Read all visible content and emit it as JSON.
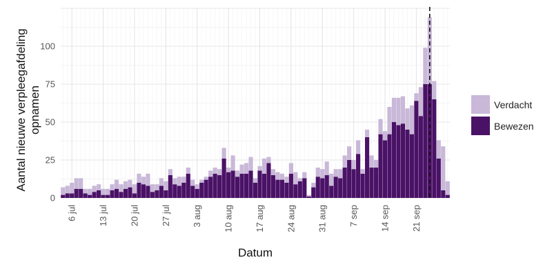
{
  "chart_data": {
    "type": "bar",
    "stacked": true,
    "xlabel": "Datum",
    "ylabel_lines": [
      "Aantal nieuwe verpleegafdeling",
      "opnamen"
    ],
    "ylim": [
      0,
      125
    ],
    "yticks": [
      0,
      25,
      50,
      75,
      100
    ],
    "grid": true,
    "legend_position": "right",
    "start_date": "2020-07-04",
    "end_date": "2020-09-28",
    "x_ticks": [
      {
        "label": "6 jul",
        "day": 2
      },
      {
        "label": "13 jul",
        "day": 9
      },
      {
        "label": "20 jul",
        "day": 16
      },
      {
        "label": "27 jul",
        "day": 23
      },
      {
        "label": "3 aug",
        "day": 30
      },
      {
        "label": "10 aug",
        "day": 37
      },
      {
        "label": "17 aug",
        "day": 44
      },
      {
        "label": "24 aug",
        "day": 51
      },
      {
        "label": "31 aug",
        "day": 58
      },
      {
        "label": "7 sep",
        "day": 65
      },
      {
        "label": "14 sep",
        "day": 72
      },
      {
        "label": "21 sep",
        "day": 79
      }
    ],
    "vline_day": 82.5,
    "series": [
      {
        "name": "Bewezen",
        "color": "#4a1266",
        "values": [
          2,
          3,
          3,
          6,
          6,
          3,
          2,
          4,
          5,
          2,
          2,
          5,
          6,
          4,
          6,
          7,
          3,
          10,
          9,
          8,
          4,
          5,
          8,
          5,
          15,
          9,
          8,
          10,
          16,
          8,
          6,
          10,
          12,
          14,
          16,
          15,
          26,
          17,
          18,
          14,
          16,
          16,
          18,
          10,
          18,
          16,
          23,
          15,
          12,
          12,
          10,
          16,
          9,
          11,
          13,
          1,
          7,
          14,
          13,
          15,
          8,
          14,
          13,
          20,
          25,
          19,
          29,
          16,
          40,
          20,
          20,
          42,
          38,
          42,
          50,
          48,
          49,
          45,
          42,
          64,
          54,
          75,
          75,
          65,
          26,
          5,
          2
        ]
      },
      {
        "name": "Verdacht",
        "color": "#c9b8d8",
        "values": [
          5,
          5,
          7,
          7,
          7,
          3,
          4,
          4,
          4,
          4,
          4,
          4,
          6,
          5,
          5,
          5,
          6,
          6,
          5,
          8,
          5,
          4,
          5,
          6,
          4,
          4,
          6,
          4,
          4,
          4,
          3,
          2,
          2,
          4,
          4,
          4,
          7,
          3,
          10,
          4,
          6,
          7,
          9,
          3,
          3,
          10,
          4,
          4,
          5,
          4,
          4,
          7,
          8,
          2,
          4,
          1,
          3,
          6,
          6,
          9,
          8,
          5,
          6,
          8,
          9,
          6,
          9,
          3,
          5,
          8,
          5,
          10,
          6,
          18,
          16,
          18,
          18,
          14,
          19,
          5,
          19,
          24,
          44,
          12,
          12,
          29,
          9
        ]
      }
    ]
  }
}
